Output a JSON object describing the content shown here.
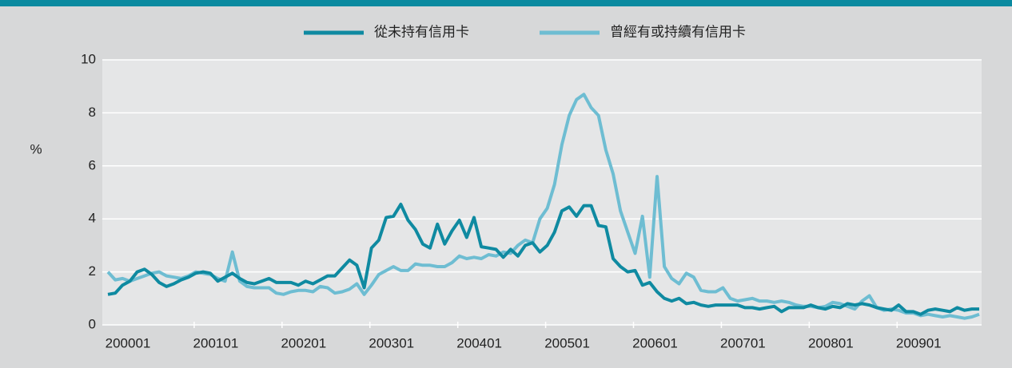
{
  "chart_data": {
    "type": "line",
    "y_label": "%",
    "categories": [
      "200001",
      null,
      null,
      null,
      null,
      null,
      null,
      null,
      null,
      null,
      null,
      null,
      "200101",
      null,
      null,
      null,
      null,
      null,
      null,
      null,
      null,
      null,
      null,
      null,
      "200201",
      null,
      null,
      null,
      null,
      null,
      null,
      null,
      null,
      null,
      null,
      null,
      "200301",
      null,
      null,
      null,
      null,
      null,
      null,
      null,
      null,
      null,
      null,
      null,
      "200401",
      null,
      null,
      null,
      null,
      null,
      null,
      null,
      null,
      null,
      null,
      null,
      "200501",
      null,
      null,
      null,
      null,
      null,
      null,
      null,
      null,
      null,
      null,
      null,
      "200601",
      null,
      null,
      null,
      null,
      null,
      null,
      null,
      null,
      null,
      null,
      null,
      "200701",
      null,
      null,
      null,
      null,
      null,
      null,
      null,
      null,
      null,
      null,
      null,
      "200801",
      null,
      null,
      null,
      null,
      null,
      null,
      null,
      null,
      null,
      null,
      null,
      "200901",
      null,
      null,
      null,
      null,
      null,
      null,
      null,
      null,
      null,
      null,
      null
    ],
    "series": [
      {
        "name": "從未持有信用卡",
        "color": "#0f8aa1",
        "values": [
          1.15,
          1.2,
          1.5,
          1.65,
          2.0,
          2.1,
          1.9,
          1.6,
          1.45,
          1.55,
          1.7,
          1.8,
          1.95,
          2.0,
          1.95,
          1.65,
          1.8,
          1.95,
          1.75,
          1.6,
          1.55,
          1.65,
          1.75,
          1.6,
          1.6,
          1.6,
          1.5,
          1.65,
          1.55,
          1.7,
          1.85,
          1.85,
          2.15,
          2.45,
          2.25,
          1.4,
          2.9,
          3.2,
          4.05,
          4.1,
          4.55,
          3.95,
          3.6,
          3.05,
          2.9,
          3.8,
          3.05,
          3.55,
          3.95,
          3.3,
          4.05,
          2.95,
          2.9,
          2.85,
          2.55,
          2.85,
          2.6,
          3.0,
          3.1,
          2.75,
          3.0,
          3.5,
          4.3,
          4.45,
          4.1,
          4.5,
          4.5,
          3.75,
          3.7,
          2.5,
          2.2,
          2.0,
          2.05,
          1.5,
          1.6,
          1.25,
          1.0,
          0.9,
          1.0,
          0.8,
          0.85,
          0.75,
          0.7,
          0.75,
          0.75,
          0.75,
          0.75,
          0.65,
          0.65,
          0.6,
          0.65,
          0.7,
          0.5,
          0.65,
          0.65,
          0.65,
          0.75,
          0.65,
          0.6,
          0.7,
          0.65,
          0.8,
          0.75,
          0.8,
          0.75,
          0.65,
          0.6,
          0.55,
          0.75,
          0.5,
          0.5,
          0.4,
          0.55,
          0.6,
          0.55,
          0.5,
          0.65,
          0.55,
          0.6,
          0.6
        ]
      },
      {
        "name": "曾經有或持續有信用卡",
        "color": "#6ebdd2",
        "values": [
          2.0,
          1.7,
          1.75,
          1.65,
          1.75,
          1.85,
          1.95,
          2.0,
          1.85,
          1.8,
          1.75,
          1.85,
          2.0,
          1.95,
          1.9,
          1.75,
          1.65,
          2.75,
          1.65,
          1.45,
          1.4,
          1.4,
          1.4,
          1.2,
          1.15,
          1.25,
          1.3,
          1.3,
          1.25,
          1.45,
          1.4,
          1.2,
          1.25,
          1.35,
          1.55,
          1.15,
          1.5,
          1.9,
          2.05,
          2.2,
          2.05,
          2.05,
          2.3,
          2.25,
          2.25,
          2.2,
          2.2,
          2.35,
          2.6,
          2.5,
          2.55,
          2.5,
          2.65,
          2.6,
          2.75,
          2.7,
          3.0,
          3.2,
          3.1,
          4.0,
          4.4,
          5.3,
          6.8,
          7.9,
          8.5,
          8.7,
          8.2,
          7.9,
          6.6,
          5.7,
          4.3,
          3.5,
          2.7,
          4.1,
          1.8,
          5.6,
          2.2,
          1.75,
          1.55,
          1.95,
          1.8,
          1.3,
          1.25,
          1.25,
          1.4,
          1.0,
          0.9,
          0.95,
          1.0,
          0.9,
          0.9,
          0.85,
          0.9,
          0.85,
          0.75,
          0.7,
          0.7,
          0.65,
          0.7,
          0.85,
          0.8,
          0.7,
          0.6,
          0.9,
          1.1,
          0.65,
          0.55,
          0.6,
          0.55,
          0.45,
          0.45,
          0.35,
          0.4,
          0.35,
          0.3,
          0.35,
          0.3,
          0.25,
          0.3,
          0.4
        ]
      }
    ],
    "ylim": [
      0,
      10
    ],
    "yticks": [
      0,
      2,
      4,
      6,
      8,
      10
    ],
    "grid": true
  }
}
